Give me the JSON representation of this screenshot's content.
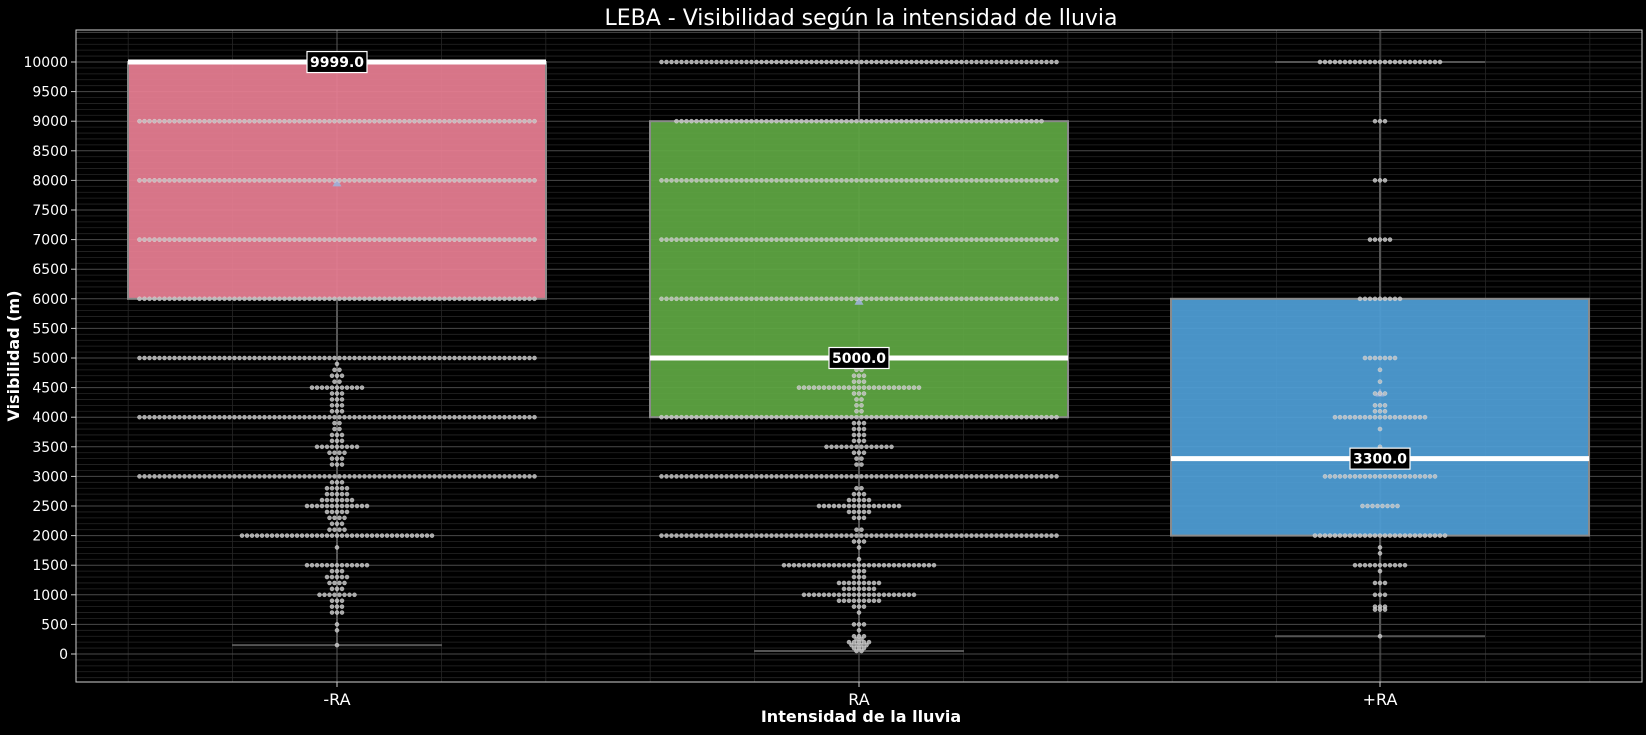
{
  "chart_data": {
    "type": "box",
    "title": "LEBA - Visibilidad según la intensidad de lluvia",
    "xlabel": "Intensidad de la lluvia",
    "ylabel": "Visibilidad (m)",
    "ylim": [
      -500,
      10500
    ],
    "yticks": [
      "0",
      "500",
      "1000",
      "1500",
      "2000",
      "2500",
      "3000",
      "3500",
      "4000",
      "4500",
      "5000",
      "5500",
      "6000",
      "6500",
      "7000",
      "7500",
      "8000",
      "8500",
      "9000",
      "9500",
      "10000"
    ],
    "grid": true,
    "categories": [
      "-RA",
      "RA",
      "+RA"
    ],
    "boxes": [
      {
        "category": "-RA",
        "color": "#e97f94",
        "whisker_low": 150,
        "q1": 6000,
        "median": 9999.0,
        "q3": 10000,
        "whisker_high": 10000,
        "mean": 7950,
        "median_label": "9999.0"
      },
      {
        "category": "RA",
        "color": "#5fa843",
        "whisker_low": 50,
        "q1": 4000,
        "median": 5000.0,
        "q3": 9000,
        "whisker_high": 10000,
        "mean": 5950,
        "median_label": "5000.0"
      },
      {
        "category": "+RA",
        "color": "#4f9fd8",
        "whisker_low": 300,
        "q1": 2000,
        "median": 3300.0,
        "q3": 6000,
        "whisker_high": 10000,
        "mean": 4400,
        "median_label": "3300.0"
      }
    ],
    "swarm": [
      {
        "category": "-RA",
        "levels": [
          {
            "value": 10000,
            "count": 80
          },
          {
            "value": 9000,
            "count": 80
          },
          {
            "value": 8000,
            "count": 80
          },
          {
            "value": 7000,
            "count": 80
          },
          {
            "value": 6000,
            "count": 80
          },
          {
            "value": 5000,
            "count": 80
          },
          {
            "value": 4900,
            "count": 1
          },
          {
            "value": 4800,
            "count": 2
          },
          {
            "value": 4700,
            "count": 3
          },
          {
            "value": 4600,
            "count": 2
          },
          {
            "value": 4500,
            "count": 11
          },
          {
            "value": 4400,
            "count": 3
          },
          {
            "value": 4300,
            "count": 3
          },
          {
            "value": 4200,
            "count": 3
          },
          {
            "value": 4100,
            "count": 3
          },
          {
            "value": 4000,
            "count": 80
          },
          {
            "value": 3900,
            "count": 2
          },
          {
            "value": 3800,
            "count": 2
          },
          {
            "value": 3700,
            "count": 3
          },
          {
            "value": 3600,
            "count": 3
          },
          {
            "value": 3500,
            "count": 9
          },
          {
            "value": 3400,
            "count": 4
          },
          {
            "value": 3300,
            "count": 3
          },
          {
            "value": 3200,
            "count": 3
          },
          {
            "value": 3000,
            "count": 80
          },
          {
            "value": 2900,
            "count": 3
          },
          {
            "value": 2800,
            "count": 5
          },
          {
            "value": 2700,
            "count": 5
          },
          {
            "value": 2600,
            "count": 7
          },
          {
            "value": 2500,
            "count": 13
          },
          {
            "value": 2400,
            "count": 5
          },
          {
            "value": 2300,
            "count": 4
          },
          {
            "value": 2200,
            "count": 3
          },
          {
            "value": 2100,
            "count": 4
          },
          {
            "value": 2000,
            "count": 39
          },
          {
            "value": 1800,
            "count": 1
          },
          {
            "value": 1500,
            "count": 13
          },
          {
            "value": 1400,
            "count": 3
          },
          {
            "value": 1300,
            "count": 5
          },
          {
            "value": 1200,
            "count": 4
          },
          {
            "value": 1100,
            "count": 3
          },
          {
            "value": 1000,
            "count": 8
          },
          {
            "value": 900,
            "count": 3
          },
          {
            "value": 800,
            "count": 3
          },
          {
            "value": 700,
            "count": 3
          },
          {
            "value": 500,
            "count": 1
          },
          {
            "value": 400,
            "count": 1
          },
          {
            "value": 150,
            "count": 1
          }
        ]
      },
      {
        "category": "RA",
        "levels": [
          {
            "value": 10000,
            "count": 80
          },
          {
            "value": 9000,
            "count": 74
          },
          {
            "value": 8000,
            "count": 80
          },
          {
            "value": 7000,
            "count": 80
          },
          {
            "value": 6000,
            "count": 80
          },
          {
            "value": 5000,
            "count": 80
          },
          {
            "value": 4800,
            "count": 2
          },
          {
            "value": 4700,
            "count": 3
          },
          {
            "value": 4600,
            "count": 3
          },
          {
            "value": 4500,
            "count": 25
          },
          {
            "value": 4400,
            "count": 3
          },
          {
            "value": 4300,
            "count": 2
          },
          {
            "value": 4200,
            "count": 2
          },
          {
            "value": 4100,
            "count": 2
          },
          {
            "value": 4000,
            "count": 80
          },
          {
            "value": 3900,
            "count": 3
          },
          {
            "value": 3800,
            "count": 3
          },
          {
            "value": 3700,
            "count": 3
          },
          {
            "value": 3600,
            "count": 3
          },
          {
            "value": 3500,
            "count": 14
          },
          {
            "value": 3400,
            "count": 3
          },
          {
            "value": 3300,
            "count": 2
          },
          {
            "value": 3200,
            "count": 2
          },
          {
            "value": 3000,
            "count": 80
          },
          {
            "value": 2800,
            "count": 2
          },
          {
            "value": 2700,
            "count": 3
          },
          {
            "value": 2600,
            "count": 5
          },
          {
            "value": 2500,
            "count": 17
          },
          {
            "value": 2400,
            "count": 5
          },
          {
            "value": 2300,
            "count": 3
          },
          {
            "value": 2100,
            "count": 2
          },
          {
            "value": 2000,
            "count": 80
          },
          {
            "value": 1900,
            "count": 3
          },
          {
            "value": 1800,
            "count": 1
          },
          {
            "value": 1600,
            "count": 1
          },
          {
            "value": 1500,
            "count": 31
          },
          {
            "value": 1400,
            "count": 3
          },
          {
            "value": 1300,
            "count": 3
          },
          {
            "value": 1200,
            "count": 9
          },
          {
            "value": 1100,
            "count": 7
          },
          {
            "value": 1000,
            "count": 23
          },
          {
            "value": 900,
            "count": 9
          },
          {
            "value": 800,
            "count": 3
          },
          {
            "value": 700,
            "count": 1
          },
          {
            "value": 500,
            "count": 3
          },
          {
            "value": 400,
            "count": 1
          },
          {
            "value": 300,
            "count": 3
          },
          {
            "value": 250,
            "count": 2
          },
          {
            "value": 200,
            "count": 5
          },
          {
            "value": 150,
            "count": 4
          },
          {
            "value": 100,
            "count": 3
          },
          {
            "value": 50,
            "count": 2
          }
        ]
      },
      {
        "category": "+RA",
        "levels": [
          {
            "value": 10000,
            "count": 25
          },
          {
            "value": 9000,
            "count": 3
          },
          {
            "value": 8000,
            "count": 3
          },
          {
            "value": 7000,
            "count": 5
          },
          {
            "value": 6000,
            "count": 9
          },
          {
            "value": 5000,
            "count": 7
          },
          {
            "value": 4800,
            "count": 1
          },
          {
            "value": 4600,
            "count": 1
          },
          {
            "value": 4400,
            "count": 3
          },
          {
            "value": 4200,
            "count": 3
          },
          {
            "value": 4100,
            "count": 3
          },
          {
            "value": 4000,
            "count": 19
          },
          {
            "value": 3800,
            "count": 1
          },
          {
            "value": 3500,
            "count": 1
          },
          {
            "value": 3300,
            "count": 11
          },
          {
            "value": 3000,
            "count": 23
          },
          {
            "value": 2500,
            "count": 8
          },
          {
            "value": 2000,
            "count": 27
          },
          {
            "value": 1800,
            "count": 1
          },
          {
            "value": 1700,
            "count": 1
          },
          {
            "value": 1500,
            "count": 11
          },
          {
            "value": 1400,
            "count": 1
          },
          {
            "value": 1200,
            "count": 3
          },
          {
            "value": 1000,
            "count": 3
          },
          {
            "value": 800,
            "count": 3
          },
          {
            "value": 750,
            "count": 3
          },
          {
            "value": 300,
            "count": 1
          }
        ]
      }
    ]
  }
}
